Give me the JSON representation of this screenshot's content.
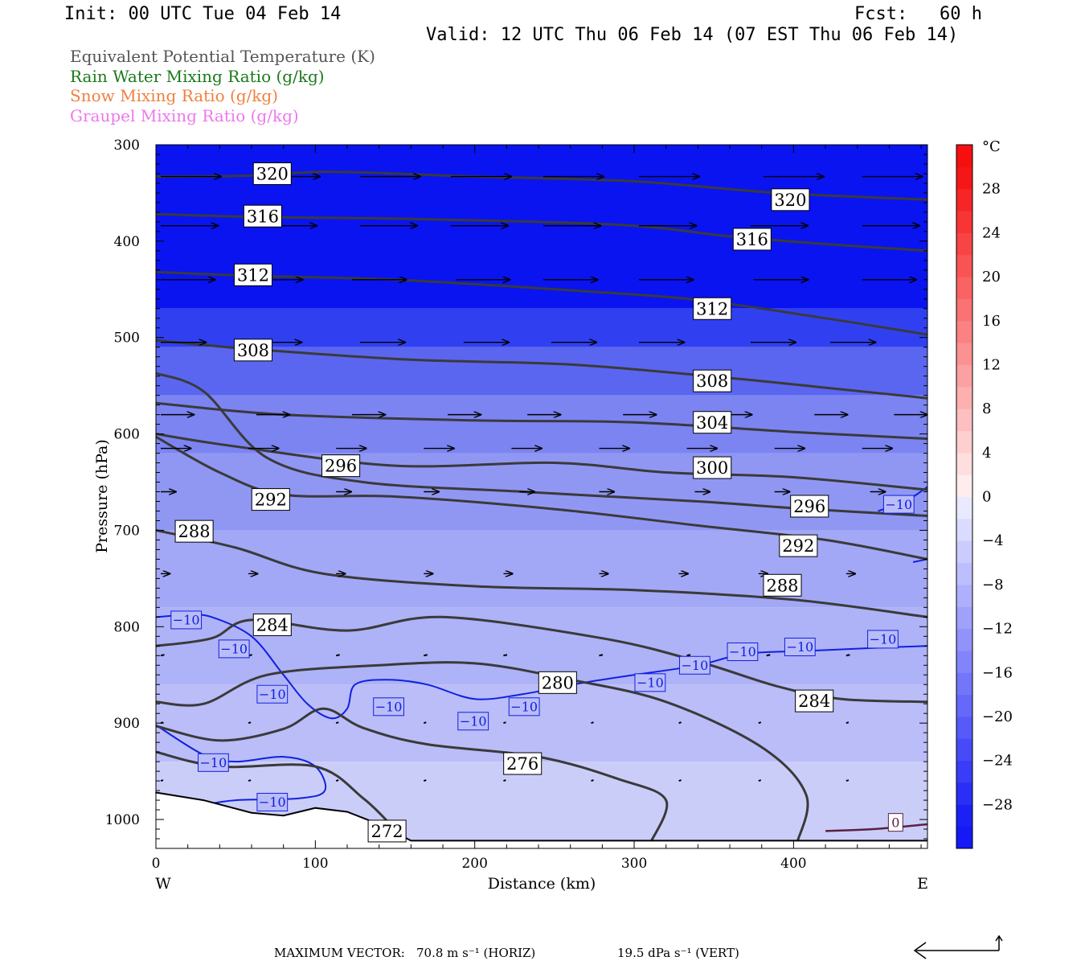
{
  "header": {
    "init": "Init: 00 UTC Tue 04 Feb 14",
    "fcst": "Fcst:   60 h",
    "valid": "Valid: 12 UTC Thu 06 Feb 14 (07 EST Thu 06 Feb 14)"
  },
  "legend": [
    {
      "text": "Equivalent Potential Temperature (K)",
      "color": "#555555"
    },
    {
      "text": "Rain Water Mixing Ratio (g/kg)",
      "color": "#1a7a1a"
    },
    {
      "text": "Snow Mixing Ratio (g/kg)",
      "color": "#f08040"
    },
    {
      "text": "Graupel Mixing Ratio (g/kg)",
      "color": "#ee77ee"
    }
  ],
  "chart_data": {
    "type": "contour",
    "xlabel": "Distance (km)",
    "ylabel": "Pressure (hPa)",
    "xlim": [
      0,
      484
    ],
    "ylim": [
      1030,
      300
    ],
    "x_ticks": [
      0,
      100,
      200,
      300,
      400
    ],
    "y_ticks": [
      300,
      400,
      500,
      600,
      700,
      800,
      900,
      1000
    ],
    "x_end_labels": {
      "left": "W",
      "right": "E"
    },
    "colorbar": {
      "unit": "°C",
      "labels": [
        "28",
        "24",
        "20",
        "16",
        "12",
        "8",
        "4",
        "0",
        "−4",
        "−8",
        "−12",
        "−16",
        "−20",
        "−24",
        "−28"
      ],
      "label_values": [
        28,
        24,
        20,
        16,
        12,
        8,
        4,
        0,
        -4,
        -8,
        -12,
        -16,
        -20,
        -24,
        -28
      ],
      "range": [
        -32,
        32
      ]
    },
    "theta_e_contours": [
      {
        "label": "320",
        "points": [
          [
            0,
            333
          ],
          [
            60,
            332
          ],
          [
            110,
            328
          ],
          [
            200,
            333
          ],
          [
            300,
            338
          ],
          [
            390,
            350
          ],
          [
            484,
            357
          ]
        ],
        "labels_at": [
          [
            73,
            330
          ],
          [
            398,
            357
          ]
        ]
      },
      {
        "label": "316",
        "points": [
          [
            0,
            372
          ],
          [
            66,
            375
          ],
          [
            160,
            377
          ],
          [
            290,
            383
          ],
          [
            360,
            395
          ],
          [
            420,
            403
          ],
          [
            484,
            410
          ]
        ],
        "labels_at": [
          [
            67,
            374
          ],
          [
            374,
            398
          ]
        ]
      },
      {
        "label": "312",
        "points": [
          [
            0,
            432
          ],
          [
            60,
            436
          ],
          [
            150,
            440
          ],
          [
            260,
            451
          ],
          [
            340,
            461
          ],
          [
            420,
            480
          ],
          [
            484,
            497
          ]
        ],
        "labels_at": [
          [
            61,
            435
          ],
          [
            349,
            470
          ]
        ]
      },
      {
        "label": "308",
        "points": [
          [
            0,
            503
          ],
          [
            60,
            512
          ],
          [
            160,
            523
          ],
          [
            260,
            528
          ],
          [
            360,
            542
          ],
          [
            420,
            552
          ],
          [
            484,
            563
          ]
        ],
        "labels_at": [
          [
            61,
            513
          ],
          [
            349,
            545
          ]
        ]
      },
      {
        "label": "304",
        "points": [
          [
            0,
            568
          ],
          [
            80,
            580
          ],
          [
            200,
            586
          ],
          [
            300,
            588
          ],
          [
            400,
            598
          ],
          [
            484,
            605
          ]
        ],
        "labels_at": [
          [
            349,
            588
          ]
        ]
      },
      {
        "label": "300",
        "points": [
          [
            0,
            600
          ],
          [
            50,
            613
          ],
          [
            150,
            633
          ],
          [
            250,
            630
          ],
          [
            320,
            640
          ],
          [
            400,
            645
          ],
          [
            484,
            658
          ]
        ],
        "labels_at": [
          [
            349,
            635
          ]
        ]
      },
      {
        "label": "296",
        "points": [
          [
            0,
            537
          ],
          [
            30,
            556
          ],
          [
            70,
            625
          ],
          [
            130,
            650
          ],
          [
            230,
            660
          ],
          [
            340,
            670
          ],
          [
            400,
            677
          ],
          [
            484,
            685
          ]
        ],
        "labels_at": [
          [
            116,
            633
          ],
          [
            410,
            675
          ]
        ]
      },
      {
        "label": "292",
        "points": [
          [
            0,
            603
          ],
          [
            40,
            640
          ],
          [
            80,
            663
          ],
          [
            150,
            665
          ],
          [
            250,
            678
          ],
          [
            340,
            695
          ],
          [
            420,
            710
          ],
          [
            484,
            730
          ]
        ],
        "labels_at": [
          [
            72,
            668
          ],
          [
            403,
            716
          ]
        ]
      },
      {
        "label": "288",
        "points": [
          [
            0,
            700
          ],
          [
            50,
            718
          ],
          [
            105,
            745
          ],
          [
            200,
            758
          ],
          [
            300,
            762
          ],
          [
            400,
            772
          ],
          [
            484,
            790
          ]
        ],
        "labels_at": [
          [
            24,
            701
          ],
          [
            393,
            757
          ]
        ]
      },
      {
        "label": "284",
        "points": [
          [
            0,
            820
          ],
          [
            35,
            812
          ],
          [
            60,
            793
          ],
          [
            120,
            804
          ],
          [
            180,
            790
          ],
          [
            280,
            812
          ],
          [
            340,
            836
          ],
          [
            390,
            862
          ],
          [
            430,
            875
          ],
          [
            484,
            878
          ]
        ],
        "labels_at": [
          [
            73,
            798
          ],
          [
            413,
            877
          ]
        ]
      },
      {
        "label": "280",
        "points": [
          [
            0,
            878
          ],
          [
            30,
            880
          ],
          [
            70,
            850
          ],
          [
            140,
            840
          ],
          [
            200,
            838
          ],
          [
            260,
            855
          ],
          [
            320,
            878
          ],
          [
            380,
            925
          ],
          [
            408,
            975
          ],
          [
            402,
            1025
          ]
        ],
        "labels_at": [
          [
            252,
            858
          ]
        ]
      },
      {
        "label": "276",
        "points": [
          [
            0,
            903
          ],
          [
            40,
            918
          ],
          [
            80,
            906
          ],
          [
            105,
            885
          ],
          [
            130,
            905
          ],
          [
            170,
            922
          ],
          [
            240,
            935
          ],
          [
            290,
            958
          ],
          [
            320,
            980
          ],
          [
            310,
            1025
          ]
        ],
        "labels_at": [
          [
            230,
            942
          ]
        ]
      },
      {
        "label": "272",
        "points": [
          [
            0,
            930
          ],
          [
            40,
            945
          ],
          [
            100,
            945
          ],
          [
            130,
            978
          ],
          [
            147,
            1005
          ]
        ],
        "labels_at": [
          [
            145,
            1012
          ]
        ]
      }
    ],
    "temperature_contours": [
      {
        "label": "−10",
        "points": [
          [
            0,
            790
          ],
          [
            20,
            788
          ],
          [
            35,
            790
          ],
          [
            60,
            810
          ],
          [
            80,
            850
          ],
          [
            95,
            880
          ],
          [
            110,
            895
          ],
          [
            120,
            885
          ],
          [
            125,
            860
          ],
          [
            145,
            855
          ],
          [
            170,
            860
          ],
          [
            200,
            875
          ],
          [
            230,
            870
          ],
          [
            262,
            860
          ],
          [
            280,
            855
          ],
          [
            300,
            850
          ],
          [
            340,
            840
          ],
          [
            370,
            828
          ],
          [
            410,
            825
          ],
          [
            450,
            822
          ],
          [
            484,
            820
          ]
        ],
        "labels_at": [
          [
            19,
            793
          ],
          [
            49,
            823
          ],
          [
            73,
            870
          ],
          [
            146,
            883
          ],
          [
            199,
            898
          ],
          [
            231,
            883
          ],
          [
            310,
            858
          ],
          [
            338,
            840
          ],
          [
            368,
            826
          ],
          [
            404,
            821
          ],
          [
            456,
            813
          ]
        ]
      },
      {
        "label": "−10",
        "points": [
          [
            0,
            902
          ],
          [
            30,
            933
          ],
          [
            50,
            940
          ],
          [
            80,
            935
          ],
          [
            100,
            945
          ],
          [
            106,
            970
          ],
          [
            90,
            978
          ],
          [
            50,
            980
          ],
          [
            30,
            985
          ]
        ],
        "labels_at": [
          [
            36,
            941
          ],
          [
            73,
            982
          ]
        ]
      },
      {
        "label": "−10",
        "points": [
          [
            453,
            680
          ],
          [
            470,
            670
          ],
          [
            484,
            655
          ]
        ],
        "labels_at": [
          [
            466,
            673
          ]
        ]
      },
      {
        "label": "−10",
        "points": [
          [
            484,
            730
          ],
          [
            475,
            733
          ]
        ],
        "labels_at": []
      }
    ],
    "zero_contours": [
      {
        "label": "0",
        "points": [
          [
            420,
            1012
          ],
          [
            450,
            1010
          ],
          [
            484,
            1005
          ]
        ],
        "labels_at": [
          [
            464,
            1003
          ]
        ],
        "color": "#5a2040"
      }
    ],
    "terrain": [
      [
        0,
        972
      ],
      [
        30,
        980
      ],
      [
        60,
        993
      ],
      [
        80,
        996
      ],
      [
        100,
        988
      ],
      [
        120,
        992
      ],
      [
        140,
        1005
      ],
      [
        160,
        1022
      ],
      [
        484,
        1022
      ]
    ],
    "wind_rows": [
      {
        "p": 333,
        "dir": 1,
        "mag": 1.0,
        "x": [
          0,
          62,
          125,
          182,
          240,
          300,
          378,
          440
        ]
      },
      {
        "p": 384,
        "dir": 1,
        "mag": 0.95,
        "x": [
          0,
          62,
          125,
          182,
          240,
          300,
          370,
          440
        ]
      },
      {
        "p": 440,
        "dir": 1,
        "mag": 0.9,
        "x": [
          0,
          55,
          120,
          185,
          240,
          300,
          372,
          440
        ]
      },
      {
        "p": 505,
        "dir": 1,
        "mag": 0.75,
        "x": [
          0,
          60,
          125,
          190,
          245,
          300,
          370,
          420
        ]
      },
      {
        "p": 580,
        "dir": 1,
        "mag": 0.55,
        "x": [
          0,
          60,
          120,
          180,
          230,
          290,
          350,
          410,
          460
        ]
      },
      {
        "p": 615,
        "dir": 1,
        "mag": 0.5,
        "x": [
          0,
          55,
          110,
          165,
          220,
          275,
          330,
          385,
          440
        ]
      },
      {
        "p": 660,
        "dir": 1,
        "mag": 0.25,
        "x": [
          0,
          60,
          110,
          165,
          225,
          275,
          335,
          385,
          445
        ]
      },
      {
        "p": 745,
        "dir": 1,
        "mag": 0.15,
        "x": [
          0,
          55,
          110,
          165,
          215,
          275,
          325,
          375,
          430
        ]
      },
      {
        "p": 830,
        "dir": 1,
        "mag": 0.06,
        "x": [
          0,
          55,
          110,
          165,
          215,
          275,
          330,
          380,
          430
        ]
      },
      {
        "p": 900,
        "dir": 1,
        "mag": 0.04,
        "x": [
          0,
          55,
          110,
          165,
          215,
          270,
          325,
          375,
          430
        ]
      },
      {
        "p": 960,
        "dir": 1,
        "mag": 0.03,
        "x": [
          0,
          55,
          110,
          165,
          215,
          270,
          325,
          375,
          430
        ]
      }
    ]
  },
  "footer": {
    "max_vector_label": "MAXIMUM VECTOR:",
    "horiz_value": "70.8 m s⁻¹ (HORIZ)",
    "vert_value": "19.5 dPa s⁻¹ (VERT)"
  }
}
